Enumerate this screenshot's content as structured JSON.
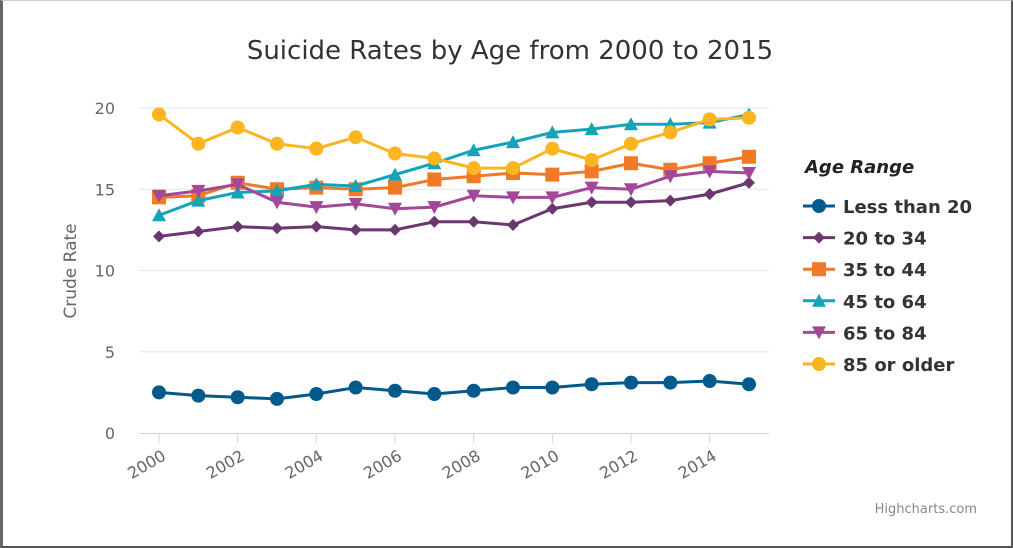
{
  "chart_data": {
    "type": "line",
    "title": "Suicide Rates by Age from 2000 to 2015",
    "xlabel": "",
    "ylabel": "Crude Rate",
    "ylim": [
      0,
      20
    ],
    "yticks": [
      0,
      5,
      10,
      15,
      20
    ],
    "xticks": [
      2000,
      2002,
      2004,
      2006,
      2008,
      2010,
      2012,
      2014
    ],
    "x": [
      2000,
      2001,
      2002,
      2003,
      2004,
      2005,
      2006,
      2007,
      2008,
      2009,
      2010,
      2011,
      2012,
      2013,
      2014,
      2015
    ],
    "legend_title": "Age Range",
    "legend_position": "right",
    "series": [
      {
        "name": "Less than 20",
        "color": "#005a8c",
        "marker": "circle",
        "values": [
          2.5,
          2.3,
          2.2,
          2.1,
          2.4,
          2.8,
          2.6,
          2.4,
          2.6,
          2.8,
          2.8,
          3.0,
          3.1,
          3.1,
          3.2,
          3.0
        ]
      },
      {
        "name": "20 to 34",
        "color": "#6a3770",
        "marker": "diamond",
        "values": [
          12.1,
          12.4,
          12.7,
          12.6,
          12.7,
          12.5,
          12.5,
          13.0,
          13.0,
          12.8,
          13.8,
          14.2,
          14.2,
          14.3,
          14.7,
          15.4
        ]
      },
      {
        "name": "35 to 44",
        "color": "#f07a26",
        "marker": "square",
        "values": [
          14.5,
          14.6,
          15.4,
          15.0,
          15.1,
          15.0,
          15.1,
          15.6,
          15.8,
          16.0,
          15.9,
          16.1,
          16.6,
          16.2,
          16.6,
          17.0
        ]
      },
      {
        "name": "45 to 64",
        "color": "#14a3b8",
        "marker": "triangle",
        "values": [
          13.4,
          14.3,
          14.8,
          14.9,
          15.3,
          15.2,
          15.9,
          16.6,
          17.4,
          17.9,
          18.5,
          18.7,
          19.0,
          19.0,
          19.1,
          19.6
        ]
      },
      {
        "name": "65 to 84",
        "color": "#a34799",
        "marker": "triangle-down",
        "values": [
          14.6,
          14.9,
          15.3,
          14.2,
          13.9,
          14.1,
          13.8,
          13.9,
          14.6,
          14.5,
          14.5,
          15.1,
          15.0,
          15.8,
          16.1,
          16.0
        ]
      },
      {
        "name": "85 or older",
        "color": "#fbb520",
        "marker": "circle",
        "values": [
          19.6,
          17.8,
          18.8,
          17.8,
          17.5,
          18.2,
          17.2,
          16.9,
          16.3,
          16.3,
          17.5,
          16.8,
          17.8,
          18.5,
          19.3,
          19.4
        ]
      }
    ],
    "credits": "Highcharts.com"
  }
}
